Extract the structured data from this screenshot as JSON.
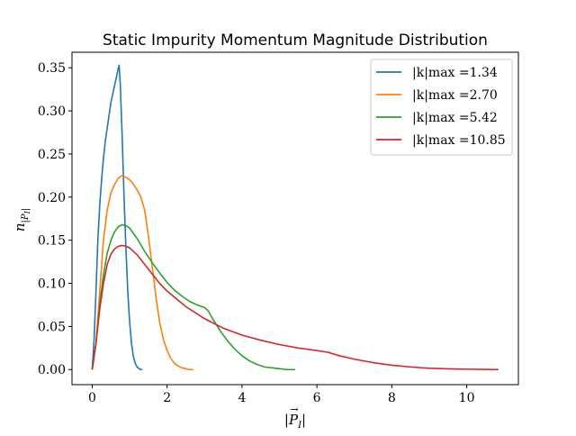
{
  "chart_data": {
    "type": "line",
    "title": "Static Impurity Momentum Magnitude Distribution",
    "xlabel": "|⃗P_I|",
    "ylabel": "n_{|⃗P_I|}",
    "xlim": [
      -0.54,
      11.38
    ],
    "ylim": [
      -0.0175,
      0.368
    ],
    "xticks": [
      0,
      2,
      4,
      6,
      8,
      10
    ],
    "yticks": [
      0.0,
      0.05,
      0.1,
      0.15,
      0.2,
      0.25,
      0.3,
      0.35
    ],
    "xtick_labels": [
      "0",
      "2",
      "4",
      "6",
      "8",
      "10"
    ],
    "ytick_labels": [
      "0.00",
      "0.05",
      "0.10",
      "0.15",
      "0.20",
      "0.25",
      "0.30",
      "0.35"
    ],
    "legend_position": "top-right",
    "grid": false,
    "series": [
      {
        "name": "|k|_max =1.34",
        "legend_label": "|k|max =1.34",
        "color": "#1f77b4",
        "x": [
          0,
          0.05,
          0.1,
          0.15,
          0.2,
          0.25,
          0.3,
          0.35,
          0.4,
          0.45,
          0.5,
          0.55,
          0.6,
          0.65,
          0.7,
          0.72,
          0.75,
          0.8,
          0.85,
          0.9,
          0.95,
          1.0,
          1.05,
          1.1,
          1.15,
          1.2,
          1.25,
          1.3,
          1.34
        ],
        "y": [
          0.0,
          0.035,
          0.09,
          0.15,
          0.19,
          0.22,
          0.245,
          0.265,
          0.28,
          0.295,
          0.31,
          0.32,
          0.33,
          0.34,
          0.35,
          0.353,
          0.33,
          0.27,
          0.2,
          0.14,
          0.09,
          0.055,
          0.03,
          0.015,
          0.007,
          0.003,
          0.001,
          0.0,
          0.0
        ]
      },
      {
        "name": "|k|_max =2.70",
        "legend_label": "|k|max =2.70",
        "color": "#ff7f0e",
        "x": [
          0,
          0.1,
          0.2,
          0.3,
          0.4,
          0.5,
          0.6,
          0.7,
          0.8,
          0.9,
          1.0,
          1.1,
          1.2,
          1.3,
          1.4,
          1.5,
          1.6,
          1.7,
          1.8,
          1.9,
          2.0,
          2.1,
          2.2,
          2.3,
          2.4,
          2.5,
          2.6,
          2.7
        ],
        "y": [
          0.0,
          0.03,
          0.09,
          0.15,
          0.185,
          0.205,
          0.215,
          0.222,
          0.225,
          0.223,
          0.22,
          0.215,
          0.208,
          0.2,
          0.185,
          0.155,
          0.12,
          0.085,
          0.055,
          0.035,
          0.022,
          0.013,
          0.007,
          0.004,
          0.002,
          0.001,
          0.0,
          0.0
        ]
      },
      {
        "name": "|k|_max =5.42",
        "legend_label": "|k|max =5.42",
        "color": "#2ca02c",
        "x": [
          0,
          0.1,
          0.2,
          0.3,
          0.4,
          0.5,
          0.6,
          0.7,
          0.8,
          0.9,
          1.0,
          1.2,
          1.4,
          1.6,
          1.8,
          2.0,
          2.2,
          2.4,
          2.6,
          2.8,
          3.0,
          3.1,
          3.2,
          3.4,
          3.6,
          3.8,
          4.0,
          4.2,
          4.4,
          4.6,
          4.8,
          5.0,
          5.2,
          5.42
        ],
        "y": [
          0.0,
          0.03,
          0.075,
          0.11,
          0.135,
          0.15,
          0.16,
          0.166,
          0.168,
          0.167,
          0.164,
          0.152,
          0.137,
          0.124,
          0.112,
          0.101,
          0.092,
          0.085,
          0.079,
          0.075,
          0.072,
          0.068,
          0.06,
          0.046,
          0.034,
          0.024,
          0.016,
          0.01,
          0.006,
          0.003,
          0.002,
          0.001,
          0.0,
          0.0
        ]
      },
      {
        "name": "|k|_max =10.85",
        "legend_label": "|k|max =10.85",
        "color": "#d62728",
        "x": [
          0,
          0.1,
          0.2,
          0.3,
          0.4,
          0.5,
          0.6,
          0.7,
          0.8,
          0.9,
          1.0,
          1.2,
          1.4,
          1.6,
          1.8,
          2.0,
          2.5,
          3.0,
          3.5,
          4.0,
          4.5,
          5.0,
          5.5,
          6.0,
          6.3,
          6.6,
          7.0,
          7.5,
          8.0,
          8.5,
          9.0,
          9.5,
          10.0,
          10.5,
          10.85
        ],
        "y": [
          0.0,
          0.03,
          0.07,
          0.1,
          0.122,
          0.134,
          0.14,
          0.143,
          0.144,
          0.143,
          0.141,
          0.133,
          0.122,
          0.111,
          0.1,
          0.091,
          0.073,
          0.059,
          0.048,
          0.04,
          0.034,
          0.029,
          0.025,
          0.022,
          0.02,
          0.016,
          0.012,
          0.008,
          0.005,
          0.003,
          0.0015,
          0.0008,
          0.0004,
          0.0002,
          0.0
        ]
      }
    ]
  }
}
